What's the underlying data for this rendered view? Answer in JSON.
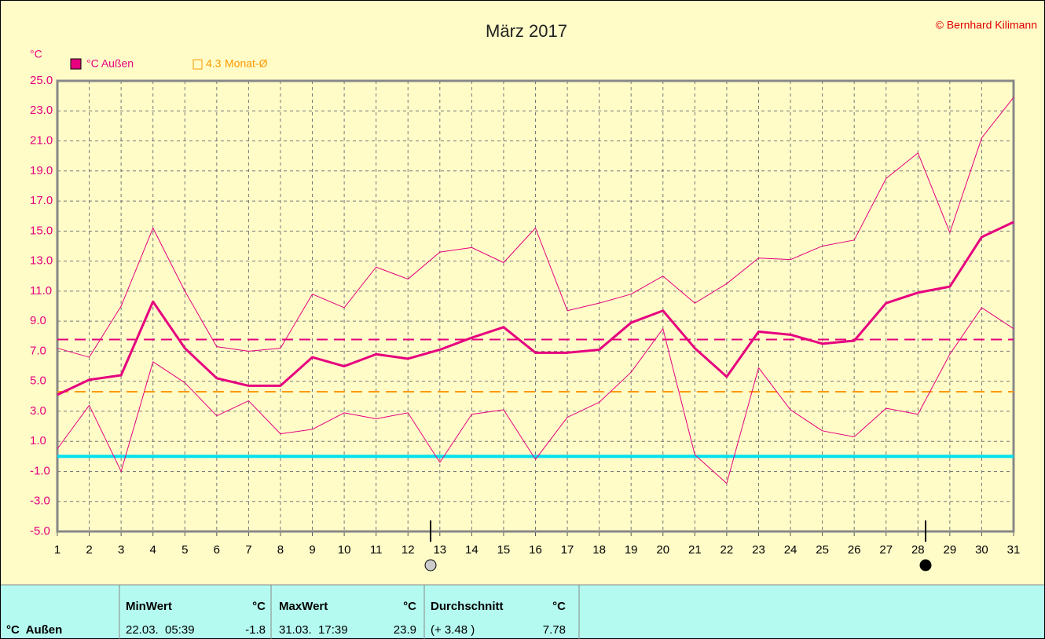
{
  "chart_data": {
    "type": "line",
    "title": "März 2017",
    "copyright": "© Bernhard Kilimann",
    "y_unit": "°C",
    "x": [
      1,
      2,
      3,
      4,
      5,
      6,
      7,
      8,
      9,
      10,
      11,
      12,
      13,
      14,
      15,
      16,
      17,
      18,
      19,
      20,
      21,
      22,
      23,
      24,
      25,
      26,
      27,
      28,
      29,
      30,
      31
    ],
    "xlim": [
      1,
      31
    ],
    "ylim": [
      -5,
      25
    ],
    "yticks": [
      {
        "value": 25,
        "label": "25.0"
      },
      {
        "value": 23,
        "label": "23.0"
      },
      {
        "value": 21,
        "label": "21.0"
      },
      {
        "value": 19,
        "label": "19.0"
      },
      {
        "value": 17,
        "label": "17.0"
      },
      {
        "value": 15,
        "label": "15.0"
      },
      {
        "value": 13,
        "label": "13.0"
      },
      {
        "value": 11,
        "label": "11.0"
      },
      {
        "value": 9,
        "label": "9.0"
      },
      {
        "value": 7,
        "label": "7.0"
      },
      {
        "value": 5,
        "label": "5.0"
      },
      {
        "value": 3,
        "label": "3.0"
      },
      {
        "value": 1,
        "label": "1.0"
      },
      {
        "value": -1,
        "label": "-1.0"
      },
      {
        "value": -3,
        "label": "-3.0"
      },
      {
        "value": -5,
        "label": "-5.0"
      }
    ],
    "grid": true,
    "series": [
      {
        "name": "°C Außen",
        "color": "#e6007e",
        "width": 3,
        "values": [
          4.1,
          5.1,
          5.4,
          10.3,
          7.2,
          5.2,
          4.7,
          4.7,
          6.6,
          6.0,
          6.8,
          6.5,
          7.1,
          7.9,
          8.6,
          6.9,
          6.9,
          7.1,
          8.9,
          9.7,
          7.2,
          5.3,
          8.3,
          8.1,
          7.5,
          7.7,
          10.2,
          10.9,
          11.3,
          14.6,
          15.6
        ]
      },
      {
        "color": "#e6007e",
        "width": 1,
        "values": [
          7.2,
          6.6,
          10.0,
          15.2,
          11.0,
          7.3,
          7.0,
          7.2,
          10.8,
          9.9,
          12.6,
          11.8,
          13.6,
          13.9,
          12.9,
          15.2,
          9.7,
          10.2,
          10.8,
          12.0,
          10.2,
          11.5,
          13.2,
          13.1,
          14.0,
          14.4,
          18.5,
          20.2,
          14.9,
          21.2,
          23.9
        ]
      },
      {
        "color": "#e6007e",
        "width": 1,
        "values": [
          0.5,
          3.4,
          -1.0,
          6.3,
          4.9,
          2.7,
          3.7,
          1.5,
          1.8,
          2.9,
          2.5,
          2.9,
          -0.4,
          2.8,
          3.1,
          -0.2,
          2.6,
          3.6,
          5.6,
          8.5,
          0.1,
          -1.8,
          5.9,
          3.1,
          1.7,
          1.3,
          3.2,
          2.8,
          6.8,
          9.9,
          8.5
        ]
      }
    ],
    "reference_lines": [
      {
        "value": 7.78,
        "color": "#e6007e",
        "dash": true
      },
      {
        "value": 4.3,
        "color": "#ff9900",
        "dash": true,
        "name": "Monat-Ø"
      },
      {
        "value": 0,
        "color": "#00e0f0",
        "dash": false
      }
    ]
  },
  "table": {
    "row_label": "°C  Außen",
    "headers": [
      "MinWert",
      "°C",
      "MaxWert",
      "°C",
      "Durchschnitt",
      "°C"
    ],
    "cells": [
      "22.03.  05:39",
      "-1.8",
      "31.03.  17:39",
      "23.9",
      "(+ 3.48 )",
      "7.78"
    ]
  }
}
